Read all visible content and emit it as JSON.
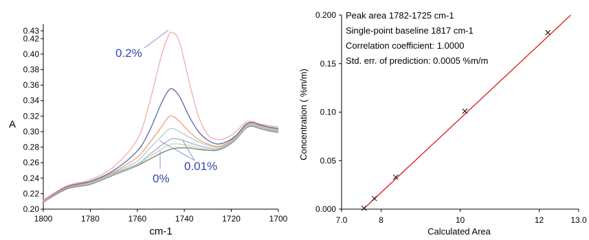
{
  "chart_data": [
    {
      "type": "line",
      "xlabel": "cm-1",
      "ylabel": "A",
      "xlim": [
        1800,
        1700
      ],
      "ylim": [
        0.2,
        0.43
      ],
      "xticks": [
        "1800",
        "1780",
        "1760",
        "1740",
        "1720",
        "1700"
      ],
      "yticks": [
        "0.20",
        "0.22",
        "0.24",
        "0.26",
        "0.28",
        "0.30",
        "0.32",
        "0.34",
        "0.36",
        "0.38",
        "0.40",
        "0.42",
        "0.43"
      ],
      "x": [
        1800,
        1790,
        1780,
        1770,
        1760,
        1755,
        1750,
        1747,
        1745,
        1742,
        1738,
        1734,
        1730,
        1726,
        1722,
        1718,
        1714,
        1711,
        1708,
        1704,
        1700
      ],
      "series": [
        {
          "color": "#f4a7b0",
          "values": [
            0.212,
            0.23,
            0.238,
            0.255,
            0.29,
            0.335,
            0.395,
            0.422,
            0.428,
            0.415,
            0.365,
            0.32,
            0.296,
            0.29,
            0.292,
            0.3,
            0.312,
            0.313,
            0.31,
            0.308,
            0.306
          ]
        },
        {
          "color": "#5566aa",
          "values": [
            0.212,
            0.229,
            0.236,
            0.25,
            0.275,
            0.3,
            0.335,
            0.352,
            0.355,
            0.345,
            0.32,
            0.3,
            0.289,
            0.284,
            0.287,
            0.295,
            0.309,
            0.312,
            0.309,
            0.306,
            0.304
          ]
        },
        {
          "color": "#f0a070",
          "values": [
            0.211,
            0.228,
            0.235,
            0.248,
            0.267,
            0.285,
            0.305,
            0.318,
            0.32,
            0.313,
            0.3,
            0.29,
            0.284,
            0.281,
            0.285,
            0.294,
            0.308,
            0.311,
            0.308,
            0.305,
            0.303
          ]
        },
        {
          "color": "#a8d0cc",
          "values": [
            0.211,
            0.228,
            0.235,
            0.247,
            0.262,
            0.278,
            0.293,
            0.302,
            0.304,
            0.3,
            0.293,
            0.287,
            0.282,
            0.28,
            0.284,
            0.293,
            0.307,
            0.31,
            0.307,
            0.304,
            0.302
          ]
        },
        {
          "color": "#a8a8d8",
          "values": [
            0.21,
            0.227,
            0.234,
            0.246,
            0.258,
            0.27,
            0.282,
            0.288,
            0.291,
            0.29,
            0.286,
            0.282,
            0.279,
            0.278,
            0.283,
            0.292,
            0.306,
            0.309,
            0.306,
            0.303,
            0.301
          ]
        },
        {
          "color": "#bcdca8",
          "values": [
            0.21,
            0.227,
            0.233,
            0.245,
            0.257,
            0.267,
            0.277,
            0.282,
            0.284,
            0.284,
            0.282,
            0.279,
            0.277,
            0.277,
            0.282,
            0.291,
            0.305,
            0.308,
            0.305,
            0.302,
            0.3
          ]
        },
        {
          "color": "#7a7a7a",
          "values": [
            0.209,
            0.226,
            0.232,
            0.244,
            0.256,
            0.264,
            0.272,
            0.276,
            0.278,
            0.279,
            0.279,
            0.277,
            0.276,
            0.276,
            0.281,
            0.29,
            0.304,
            0.307,
            0.304,
            0.301,
            0.299
          ]
        }
      ],
      "annotations": [
        "0.2%",
        "0.01%",
        "0%"
      ]
    },
    {
      "type": "scatter",
      "xlabel": "Calculated Area",
      "ylabel": "Concentration (  %m/m)",
      "xlim": [
        7.0,
        13.0
      ],
      "ylim": [
        0.0,
        0.2
      ],
      "xticks": [
        "7.0",
        "8",
        "10",
        "12",
        "13.0"
      ],
      "yticks": [
        "0.000",
        "0.05",
        "0.10",
        "0.15",
        "0.200"
      ],
      "points": {
        "x": [
          7.57,
          7.83,
          8.37,
          10.12,
          12.22
        ],
        "y": [
          0.001,
          0.011,
          0.033,
          0.101,
          0.182
        ]
      },
      "fit_line": {
        "x": [
          7.55,
          12.8
        ],
        "y": [
          0.0,
          0.2
        ],
        "color": "#dd2222"
      },
      "text_box": [
        "Peak area 1782-1725 cm-1",
        "Single-point baseline 1817 cm-1",
        "Correlation coefficient: 1.0000",
        "Std. err. of prediction: 0.0005 %m/m"
      ]
    }
  ]
}
